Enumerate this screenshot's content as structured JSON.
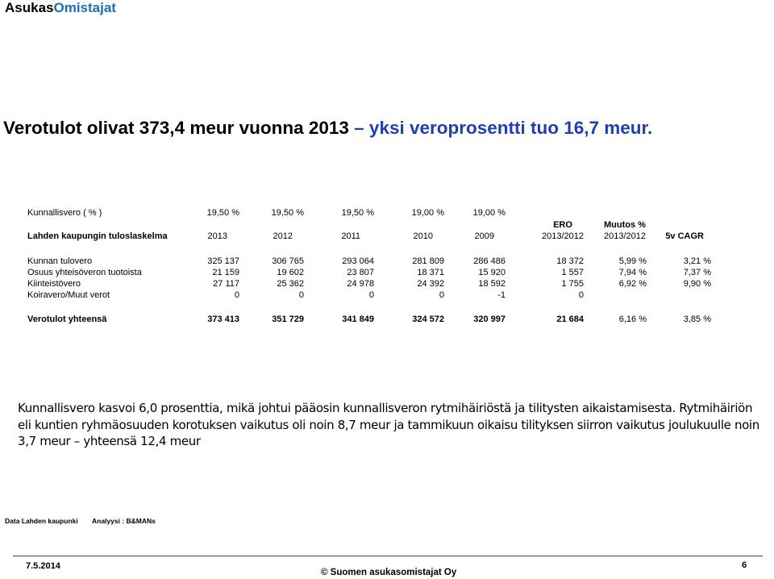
{
  "brand": {
    "part1": "Asukas",
    "part2": "Omistajat"
  },
  "title": {
    "prefix": "Verotulot olivat 373,4 meur vuonna 2013 ",
    "highlight": "– yksi veroprosentti tuo 16,7 meur."
  },
  "table": {
    "tax_rate_label": "Kunnallisvero ( % )",
    "tax_rates": [
      "19,50 %",
      "19,50 %",
      "19,50 %",
      "19,00 %",
      "19,00 %"
    ],
    "header_label": "Lahden kaupungin tuloslaskelma",
    "years": [
      "2013",
      "2012",
      "2011",
      "2010",
      "2009"
    ],
    "ero_label": "ERO",
    "ero_sub": "2013/2012",
    "muutos_label": "Muutos %",
    "muutos_sub": "2013/2012",
    "cagr_label": "5v CAGR",
    "rows": [
      {
        "label": "Kunnan tulovero",
        "values": [
          "325 137",
          "306 765",
          "293 064",
          "281 809",
          "286 486"
        ],
        "ero": "18 372",
        "muutos": "5,99 %",
        "cagr": "3,21 %"
      },
      {
        "label": "Osuus yhteisöveron tuotoista",
        "values": [
          "21 159",
          "19 602",
          "23 807",
          "18 371",
          "15 920"
        ],
        "ero": "1 557",
        "muutos": "7,94 %",
        "cagr": "7,37 %"
      },
      {
        "label": "Kiinteistövero",
        "values": [
          "27 117",
          "25 362",
          "24 978",
          "24 392",
          "18 592"
        ],
        "ero": "1 755",
        "muutos": "6,92 %",
        "cagr": "9,90 %"
      },
      {
        "label": "Koiravero/Muut verot",
        "values": [
          "0",
          "0",
          "0",
          "0",
          "-1"
        ],
        "ero": "0",
        "muutos": "",
        "cagr": ""
      }
    ],
    "total": {
      "label": "Verotulot yhteensä",
      "values": [
        "373 413",
        "351 729",
        "341 849",
        "324 572",
        "320 997"
      ],
      "ero": "21 684",
      "muutos": "6,16 %",
      "cagr": "3,85 %"
    }
  },
  "paragraph": "Kunnallisvero kasvoi 6,0 prosenttia, mikä johtui pääosin kunnallisveron rytmihäiriöstä ja tilitysten aikaistamisesta. Rytmihäiriön eli kuntien ryhmäosuuden korotuksen vaikutus oli noin 8,7 meur ja tammikuun oikaisu tilityksen siirron vaikutus joulukuulle noin 3,7 meur – yhteensä 12,4 meur",
  "source": {
    "data": "Data Lahden kaupunki",
    "analysis": "Analyysi : B&MANs"
  },
  "footer": {
    "date": "7.5.2014",
    "copyright": "© Suomen asukasomistajat Oy",
    "page": "6"
  }
}
